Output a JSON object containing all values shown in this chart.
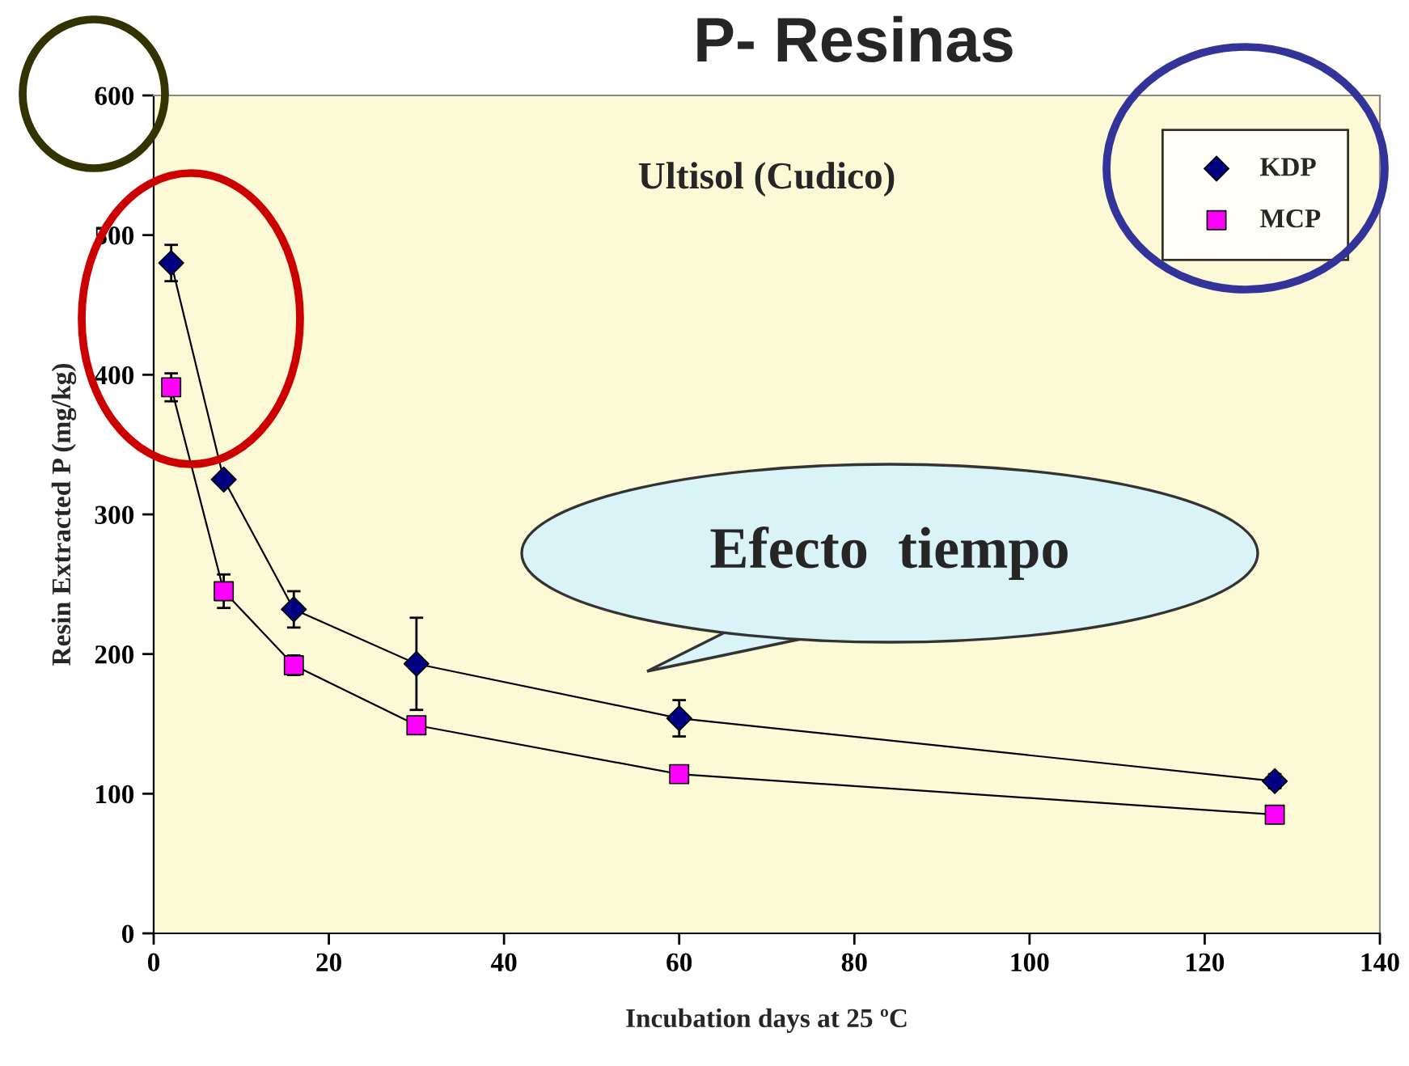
{
  "chart_data": {
    "type": "line",
    "title": "P- Resinas",
    "subtitle": "Ultisol (Cudico)",
    "xlabel": "Incubation days at 25 ºC",
    "ylabel": "Resin Extracted P (mg/kg)",
    "annotations": [
      "Efecto  tiempo"
    ],
    "xlim": [
      0,
      140
    ],
    "xticks": [
      0,
      20,
      40,
      60,
      80,
      100,
      120,
      140
    ],
    "ylim": [
      0,
      600
    ],
    "yticks": [
      0,
      100,
      200,
      300,
      400,
      500,
      600
    ],
    "grid": false,
    "legend": "top right",
    "line_style": "solid",
    "series": [
      {
        "name": "KDP",
        "color": "#000080",
        "marker": "diamond",
        "x": [
          2,
          8,
          16,
          30,
          60,
          128
        ],
        "values": [
          480,
          325,
          232,
          193,
          154,
          109
        ],
        "errors": [
          13,
          null,
          13,
          33,
          13,
          5
        ]
      },
      {
        "name": "MCP",
        "color": "#ff00ff",
        "marker": "square",
        "x": [
          2,
          8,
          16,
          30,
          60,
          128
        ],
        "values": [
          391,
          245,
          192,
          149,
          114,
          85
        ],
        "errors": [
          10,
          12,
          7,
          4,
          5,
          null
        ]
      }
    ]
  }
}
